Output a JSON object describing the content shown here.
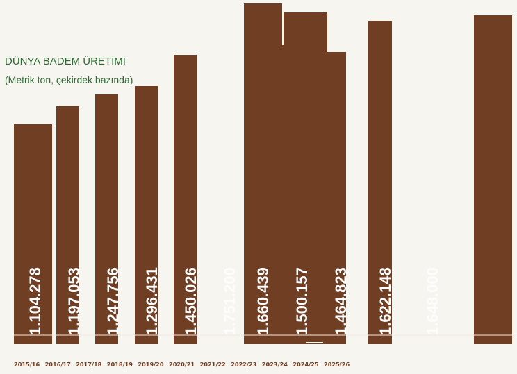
{
  "chart_data": {
    "type": "bar",
    "title": "DÜNYA BADEM ÜRETİMİ",
    "subtitle": "(Metrik ton, çekirdek bazında)",
    "categories": [
      "2015/16",
      "2016/17",
      "2017/18",
      "2018/19",
      "2019/20",
      "2020/21",
      "2021/22",
      "2022/23",
      "2023/24",
      "2024/25",
      "2025/26"
    ],
    "values": [
      1104278,
      1197053,
      1247756,
      1296431,
      1450026,
      1751200,
      1660439,
      1500157,
      1464823,
      1622148,
      1648000
    ],
    "value_labels": [
      "1.104.278",
      "1.197.053",
      "1.247.756",
      "1.296.431",
      "1.450.026",
      "1.751.200",
      "1.660.439",
      "1.500.157",
      "1.464.823",
      "1.622.148",
      "1.648.000"
    ],
    "colors": {
      "bar": "#703e23",
      "title": "#2f6b34",
      "background": "#f7f5ef",
      "label": "#ffffff"
    }
  }
}
